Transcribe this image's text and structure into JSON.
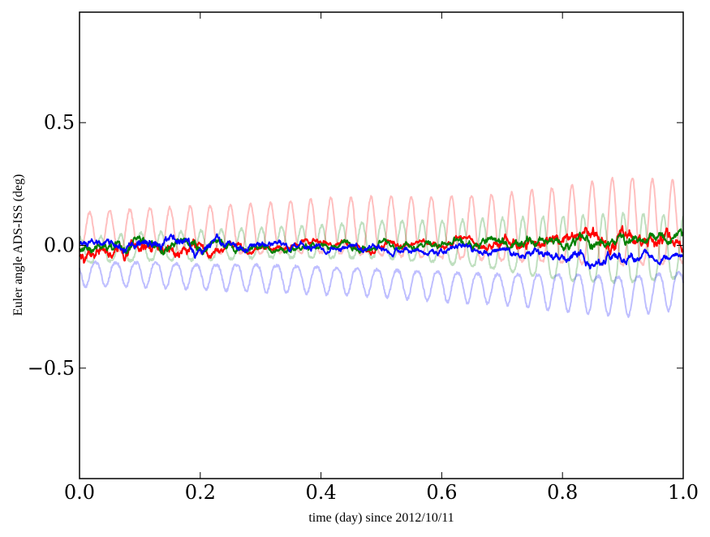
{
  "chart_data": {
    "type": "line",
    "title": "",
    "xlabel": "time (day) since 2012/10/11",
    "ylabel": "Euler angle ADS-ISS (deg)",
    "xlim": [
      0.0,
      1.0
    ],
    "ylim": [
      -0.95,
      0.95
    ],
    "xticks": [
      0.0,
      0.2,
      0.4,
      0.6,
      0.8,
      1.0
    ],
    "xtick_labels": [
      "0.0",
      "0.2",
      "0.4",
      "0.6",
      "0.8",
      "1.0"
    ],
    "yticks": [
      -0.5,
      0.0,
      0.5
    ],
    "ytick_labels": [
      "−0.5",
      "0.0",
      "0.5"
    ],
    "grid": false,
    "legend": "none",
    "series": [
      {
        "color": "#ff0000",
        "opacity": 0.25,
        "style": "periodic",
        "x": [
          0.0,
          0.1,
          0.2,
          0.3,
          0.4,
          0.5,
          0.6,
          0.7,
          0.8,
          0.9,
          1.0
        ],
        "baseline": [
          -0.02,
          -0.02,
          -0.03,
          -0.03,
          -0.03,
          -0.04,
          -0.05,
          -0.06,
          -0.07,
          -0.08,
          -0.07
        ],
        "peak": [
          0.13,
          0.15,
          0.16,
          0.17,
          0.19,
          0.2,
          0.2,
          0.21,
          0.24,
          0.28,
          0.26
        ]
      },
      {
        "color": "#008000",
        "opacity": 0.25,
        "style": "periodic",
        "x": [
          0.0,
          0.1,
          0.2,
          0.3,
          0.4,
          0.5,
          0.6,
          0.7,
          0.8,
          0.9,
          1.0
        ],
        "baseline": [
          -0.07,
          -0.06,
          -0.06,
          -0.05,
          -0.05,
          -0.05,
          -0.07,
          -0.1,
          -0.14,
          -0.15,
          -0.13
        ],
        "peak": [
          0.03,
          0.05,
          0.06,
          0.07,
          0.08,
          0.1,
          0.1,
          0.11,
          0.12,
          0.13,
          0.12
        ]
      },
      {
        "color": "#0000ff",
        "opacity": 0.25,
        "style": "periodic-negative",
        "x": [
          0.0,
          0.1,
          0.2,
          0.3,
          0.4,
          0.5,
          0.6,
          0.7,
          0.8,
          0.9,
          1.0
        ],
        "baseline": [
          -0.07,
          -0.07,
          -0.08,
          -0.08,
          -0.09,
          -0.1,
          -0.11,
          -0.12,
          -0.12,
          -0.13,
          -0.11
        ],
        "trough": [
          -0.17,
          -0.17,
          -0.18,
          -0.19,
          -0.2,
          -0.21,
          -0.23,
          -0.24,
          -0.27,
          -0.29,
          -0.26
        ]
      },
      {
        "color": "#ff0000",
        "opacity": 1.0,
        "style": "noise",
        "x": [
          0.0,
          0.1,
          0.2,
          0.3,
          0.4,
          0.5,
          0.6,
          0.7,
          0.8,
          0.9,
          1.0
        ],
        "mean": [
          -0.05,
          -0.02,
          -0.01,
          -0.01,
          0.0,
          0.0,
          0.01,
          0.01,
          0.02,
          0.03,
          0.01
        ],
        "amplitude": [
          0.04,
          0.04,
          0.03,
          0.02,
          0.02,
          0.02,
          0.02,
          0.03,
          0.04,
          0.05,
          0.04
        ]
      },
      {
        "color": "#008000",
        "opacity": 1.0,
        "style": "noise",
        "x": [
          0.0,
          0.1,
          0.2,
          0.3,
          0.4,
          0.5,
          0.6,
          0.7,
          0.8,
          0.9,
          1.0
        ],
        "mean": [
          -0.01,
          0.0,
          -0.01,
          -0.01,
          0.0,
          0.0,
          0.0,
          0.01,
          0.01,
          0.02,
          0.02
        ],
        "amplitude": [
          0.03,
          0.03,
          0.03,
          0.02,
          0.02,
          0.02,
          0.02,
          0.03,
          0.03,
          0.03,
          0.03
        ]
      },
      {
        "color": "#0000ff",
        "opacity": 1.0,
        "style": "noise",
        "x": [
          0.0,
          0.1,
          0.2,
          0.3,
          0.4,
          0.5,
          0.6,
          0.7,
          0.8,
          0.9,
          1.0
        ],
        "mean": [
          0.01,
          0.01,
          0.0,
          0.0,
          0.0,
          0.0,
          -0.02,
          -0.03,
          -0.05,
          -0.05,
          -0.03
        ],
        "amplitude": [
          0.02,
          0.03,
          0.03,
          0.02,
          0.02,
          0.02,
          0.02,
          0.02,
          0.03,
          0.03,
          0.02
        ]
      }
    ]
  }
}
